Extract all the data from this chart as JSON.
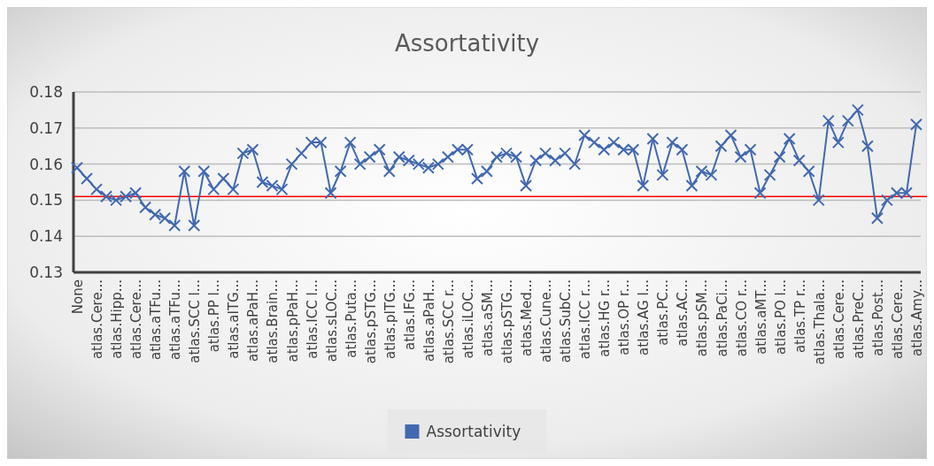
{
  "chart_data": {
    "type": "line",
    "title": "Assortativity",
    "categories": [
      "None",
      null,
      "atlas.Cere...",
      null,
      "atlas.Hipp...",
      null,
      "atlas.Cere...",
      null,
      "atlas.aTFu...",
      null,
      "atlas.aTFu...",
      null,
      "atlas.SCC l...",
      null,
      "atlas.PP l...",
      null,
      "atlas.aITG...",
      null,
      "atlas.aPaH...",
      null,
      "atlas.Brain...",
      null,
      "atlas.pPaH...",
      null,
      "atlas.ICC l...",
      null,
      "atlas.sLOC...",
      null,
      "atlas.Puta...",
      null,
      "atlas.pSTG...",
      null,
      "atlas.pITG...",
      null,
      "atlas.IFG...",
      null,
      "atlas.aPaH...",
      null,
      "atlas.SCC r...",
      null,
      "atlas.iLOC...",
      null,
      "atlas.aSM...",
      null,
      "atlas.pSTG...",
      null,
      "atlas.Med...",
      null,
      "atlas.Cune...",
      null,
      "atlas.SubC...",
      null,
      "atlas.ICC r...",
      null,
      "atlas.HG r...",
      null,
      "atlas.OP r...",
      null,
      "atlas.AG l...",
      null,
      "atlas.PC...",
      null,
      "atlas.AC...",
      null,
      "atlas.pSM...",
      null,
      "atlas.PaCi...",
      null,
      "atlas.CO r...",
      null,
      "atlas.aMT...",
      null,
      "atlas.PO l...",
      null,
      "atlas.TP r...",
      null,
      "atlas.Thala...",
      null,
      "atlas.Cere...",
      null,
      "atlas.PreC...",
      null,
      "atlas.Post...",
      null,
      "atlas.Cere...",
      null,
      "atlas.Amy..."
    ],
    "series": [
      {
        "name": "Assortativity",
        "color": "#4169b0",
        "values": [
          0.159,
          0.156,
          0.153,
          0.151,
          0.15,
          0.151,
          0.152,
          0.148,
          0.146,
          0.145,
          0.143,
          0.158,
          0.143,
          0.158,
          0.153,
          0.156,
          0.153,
          0.163,
          0.164,
          0.155,
          0.154,
          0.153,
          0.16,
          0.163,
          0.166,
          0.166,
          0.152,
          0.158,
          0.166,
          0.16,
          0.162,
          0.164,
          0.158,
          0.162,
          0.161,
          0.16,
          0.159,
          0.16,
          0.162,
          0.164,
          0.164,
          0.156,
          0.158,
          0.162,
          0.163,
          0.162,
          0.154,
          0.161,
          0.163,
          0.161,
          0.163,
          0.16,
          0.168,
          0.166,
          0.164,
          0.166,
          0.164,
          0.164,
          0.154,
          0.167,
          0.157,
          0.166,
          0.164,
          0.154,
          0.158,
          0.157,
          0.165,
          0.168,
          0.162,
          0.164,
          0.152,
          0.157,
          0.162,
          0.167,
          0.161,
          0.158,
          0.15,
          0.172,
          0.166,
          0.172,
          0.175,
          0.165,
          0.145,
          0.15,
          0.152,
          0.152,
          0.171
        ]
      }
    ],
    "ylim": [
      0.13,
      0.18
    ],
    "yticks": [
      0.13,
      0.14,
      0.15,
      0.16,
      0.17,
      0.18
    ],
    "grid": "y",
    "legend": "bottom",
    "marker": "cross",
    "ref_lines": [
      {
        "axis": "y",
        "value": 0.151,
        "color": "#ff0000"
      }
    ]
  }
}
